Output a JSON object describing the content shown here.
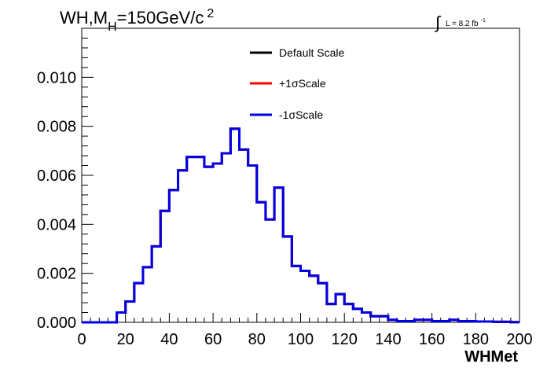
{
  "title": {
    "main": "WH,M",
    "subscript": "H",
    "mid": "=150GeV/c",
    "superscript": "2"
  },
  "luminosity": {
    "text": "L = 8.2 fb",
    "superscript": "-1"
  },
  "colors": {
    "default": "#000000",
    "plus": "#ff0000",
    "minus": "#0000e6",
    "axis": "#000000",
    "background": "#ffffff"
  },
  "chart_data": {
    "type": "line",
    "step": true,
    "xlabel": "WHMet",
    "ylabel": "",
    "xlim": [
      0,
      200
    ],
    "ylim": [
      0,
      0.012
    ],
    "x_ticks": [
      0,
      20,
      40,
      60,
      80,
      100,
      120,
      140,
      160,
      180,
      200
    ],
    "y_ticks": [
      0.0,
      0.002,
      0.004,
      0.006,
      0.008,
      0.01
    ],
    "y_tick_labels": [
      "0.000",
      "0.002",
      "0.004",
      "0.006",
      "0.008",
      "0.010"
    ],
    "x_tick_labels": [
      "0",
      "20",
      "40",
      "60",
      "80",
      "100",
      "120",
      "140",
      "160",
      "180",
      "200"
    ],
    "grid": false,
    "legend_position": "top-center",
    "bin_width": 4,
    "bin_edges_start": 0,
    "series": [
      {
        "name": "Default Scale",
        "color": "#000000",
        "values": [
          0,
          0,
          0,
          0,
          0.0004,
          0.00085,
          0.0016,
          0.00225,
          0.0031,
          0.00455,
          0.0054,
          0.0062,
          0.00675,
          0.00675,
          0.00635,
          0.00648,
          0.0069,
          0.0079,
          0.00705,
          0.0064,
          0.0049,
          0.0042,
          0.0055,
          0.0035,
          0.0023,
          0.0021,
          0.0019,
          0.0016,
          0.00075,
          0.00115,
          0.00075,
          0.00055,
          0.0004,
          0.00025,
          0.00025,
          0.0001,
          5e-05,
          5e-05,
          0.0001,
          0.0001,
          5e-05,
          5e-05,
          0.0001,
          5e-05,
          5e-05,
          3e-05,
          3e-05,
          2e-05,
          2e-05,
          1e-05
        ]
      },
      {
        "name": "+1σScale",
        "color": "#ff0000",
        "values": [
          0,
          0,
          0,
          0,
          0.0004,
          0.00085,
          0.0016,
          0.00225,
          0.0031,
          0.00455,
          0.0054,
          0.0062,
          0.00675,
          0.00675,
          0.00635,
          0.00648,
          0.0069,
          0.0079,
          0.00705,
          0.0064,
          0.0049,
          0.0042,
          0.0055,
          0.0035,
          0.0023,
          0.0021,
          0.0019,
          0.0016,
          0.00075,
          0.00115,
          0.00075,
          0.00055,
          0.0004,
          0.00025,
          0.00025,
          0.0001,
          5e-05,
          5e-05,
          0.0001,
          0.0001,
          5e-05,
          5e-05,
          0.0001,
          5e-05,
          5e-05,
          3e-05,
          3e-05,
          2e-05,
          2e-05,
          1e-05
        ]
      },
      {
        "name": "-1σScale",
        "color": "#0000e6",
        "values": [
          0,
          0,
          0,
          0,
          0.0004,
          0.00085,
          0.0016,
          0.00225,
          0.0031,
          0.00455,
          0.0054,
          0.0062,
          0.00675,
          0.00675,
          0.00635,
          0.00648,
          0.0069,
          0.0079,
          0.00705,
          0.0064,
          0.0049,
          0.0042,
          0.0055,
          0.0035,
          0.0023,
          0.0021,
          0.0019,
          0.0016,
          0.00075,
          0.00115,
          0.00075,
          0.00055,
          0.0004,
          0.00025,
          0.00025,
          0.0001,
          5e-05,
          5e-05,
          0.0001,
          0.0001,
          5e-05,
          5e-05,
          0.0001,
          5e-05,
          5e-05,
          3e-05,
          3e-05,
          2e-05,
          2e-05,
          1e-05
        ]
      }
    ]
  }
}
